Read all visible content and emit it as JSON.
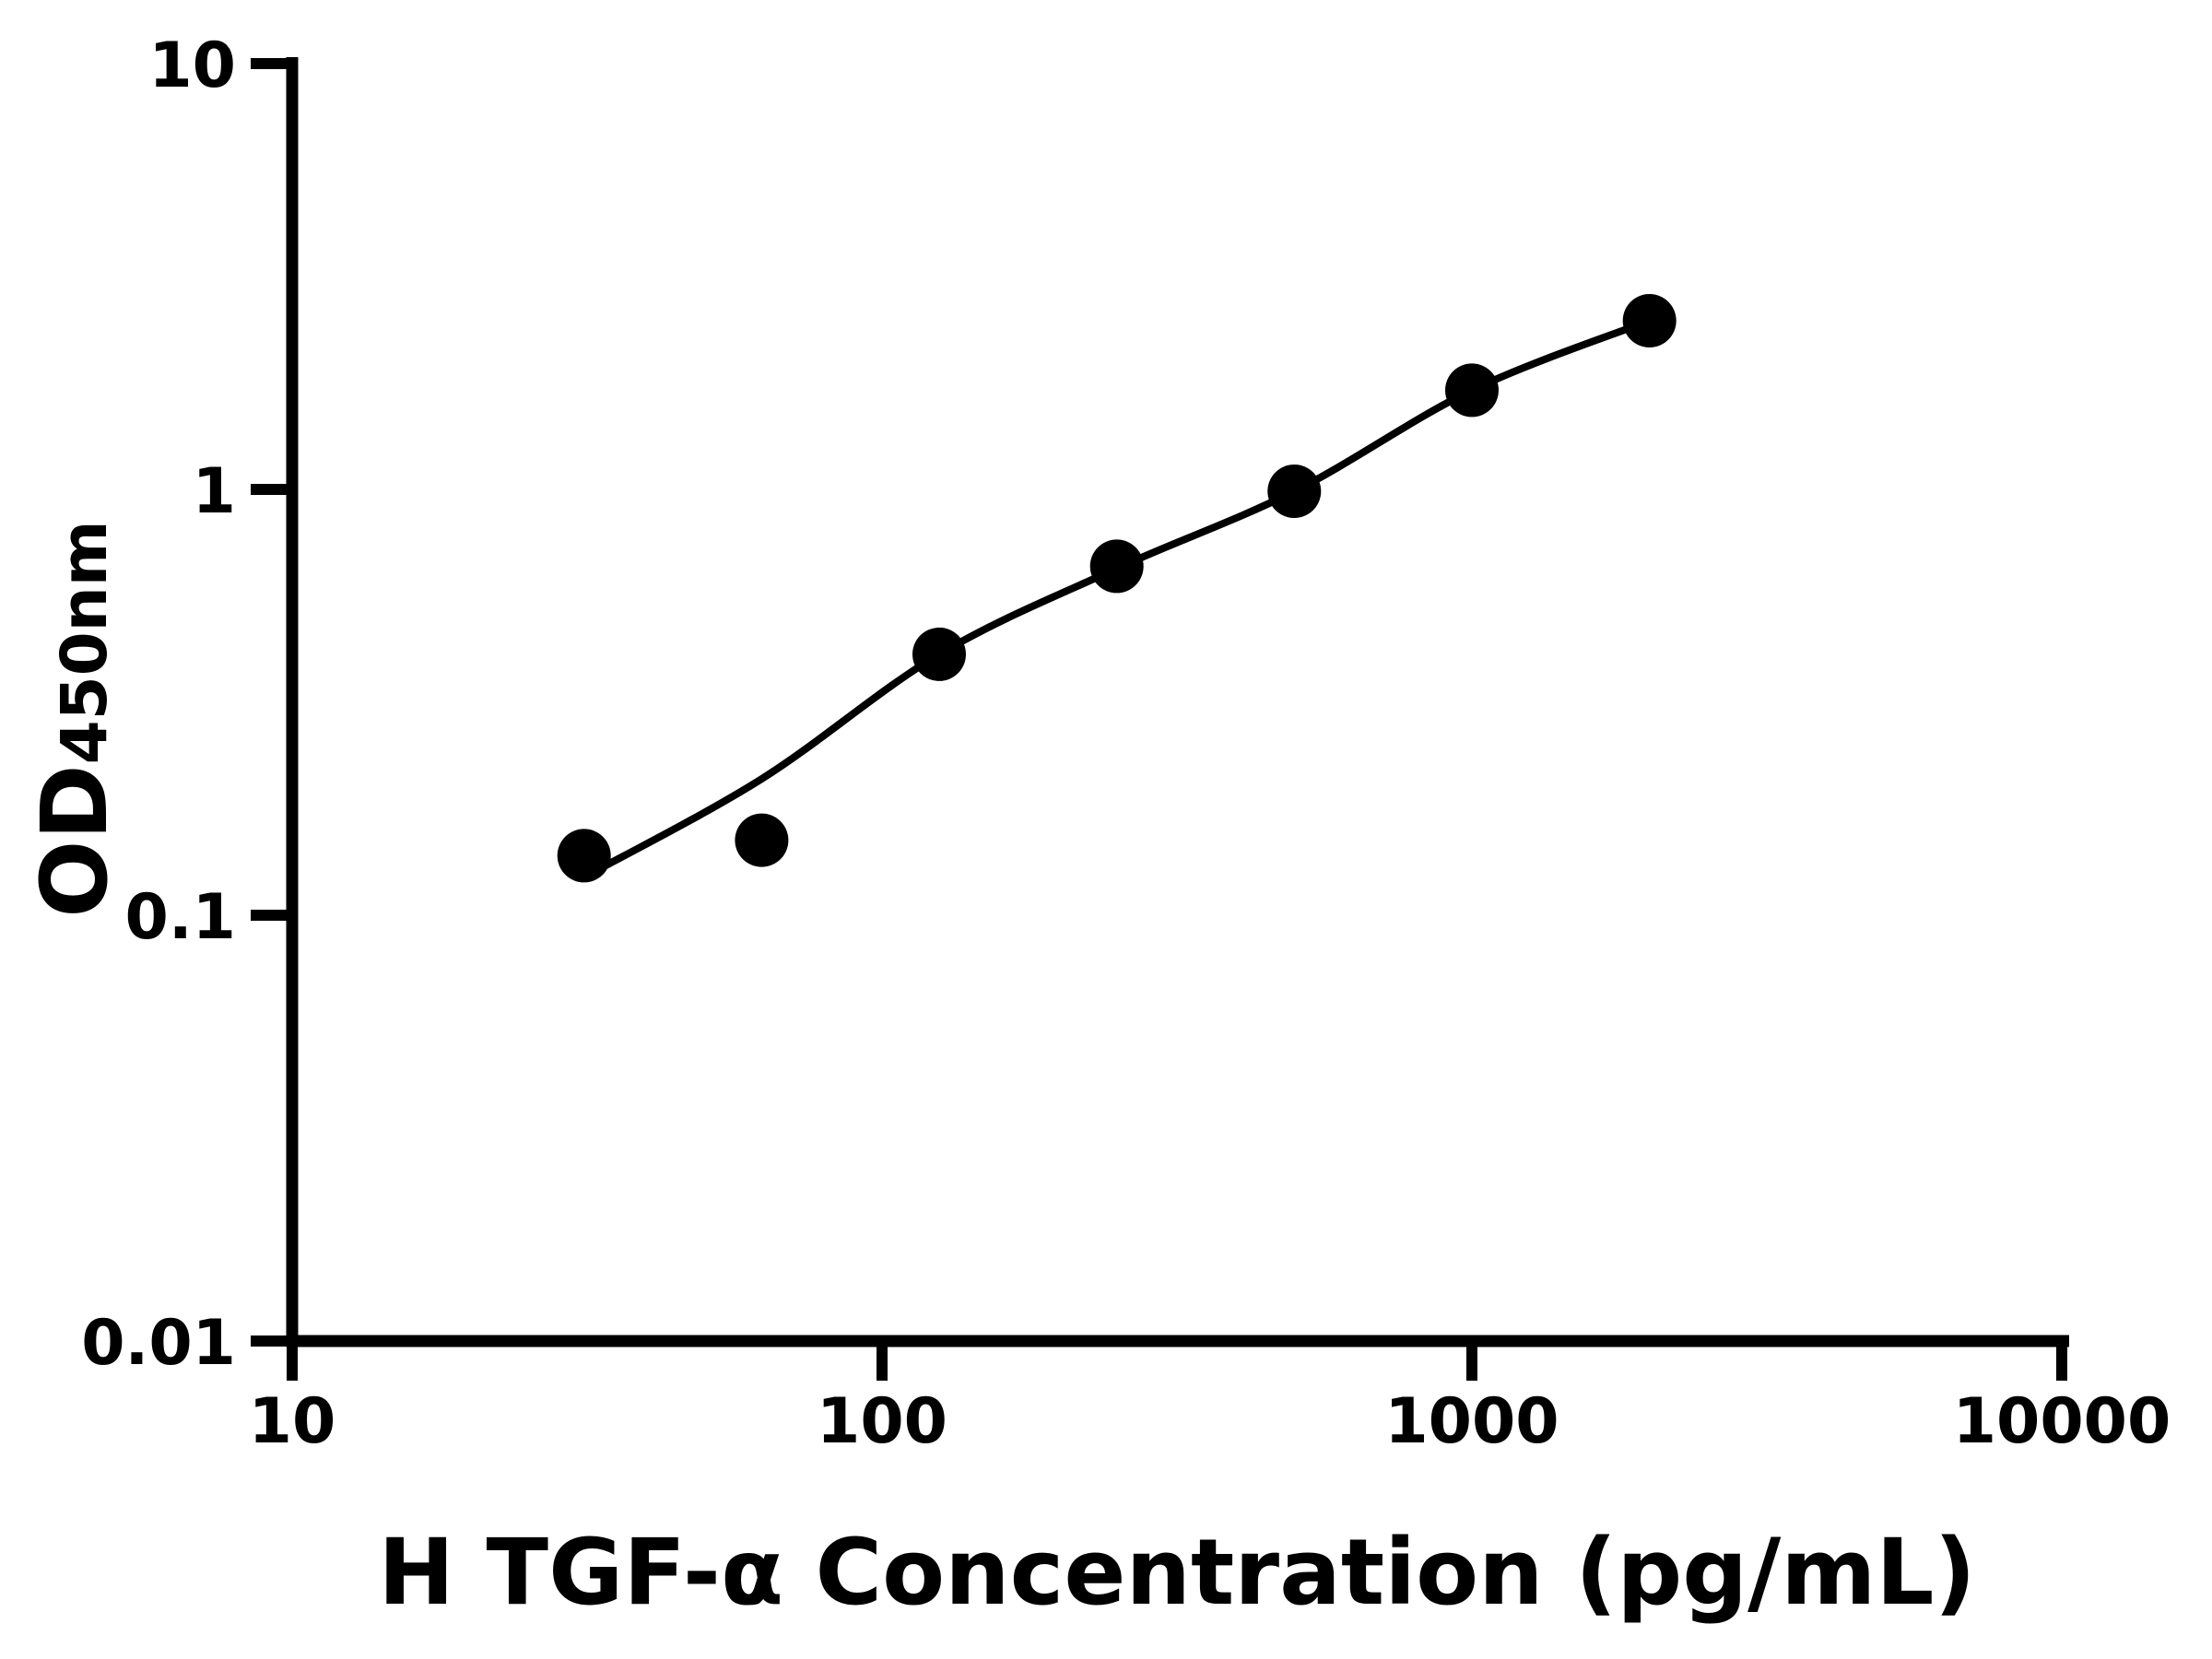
{
  "figure": {
    "background_color": "#ffffff",
    "ink_color": "#000000"
  },
  "chart_data": {
    "type": "scatter",
    "title": "",
    "xlabel": "H TGF-α Concentration (pg/mL)",
    "ylabel_main": "OD",
    "ylabel_sub": "450nm",
    "x_scale": "log",
    "y_scale": "log",
    "xlim": [
      10,
      10000
    ],
    "ylim": [
      0.01,
      10
    ],
    "grid": false,
    "legend": null,
    "x_ticks": [
      {
        "value": 10,
        "label": "10"
      },
      {
        "value": 100,
        "label": "100"
      },
      {
        "value": 1000,
        "label": "1000"
      },
      {
        "value": 10000,
        "label": "10000"
      }
    ],
    "y_ticks": [
      {
        "value": 10,
        "label": "10"
      },
      {
        "value": 1,
        "label": "1"
      },
      {
        "value": 0.1,
        "label": "0.1"
      },
      {
        "value": 0.01,
        "label": "0.01"
      }
    ],
    "series": [
      {
        "name": "standard-points",
        "marker": "filled-circle",
        "color": "#000000",
        "x": [
          31.25,
          62.5,
          125,
          250,
          500,
          1000,
          2000
        ],
        "y": [
          0.138,
          0.15,
          0.41,
          0.66,
          0.99,
          1.71,
          2.49
        ]
      }
    ],
    "fit_curve": {
      "name": "fitted-standard-curve",
      "color": "#000000",
      "x": [
        31.3,
        62.5,
        125,
        250,
        500,
        1000,
        2000
      ],
      "y": [
        0.123,
        0.209,
        0.41,
        0.652,
        0.99,
        1.71,
        2.49
      ]
    }
  }
}
